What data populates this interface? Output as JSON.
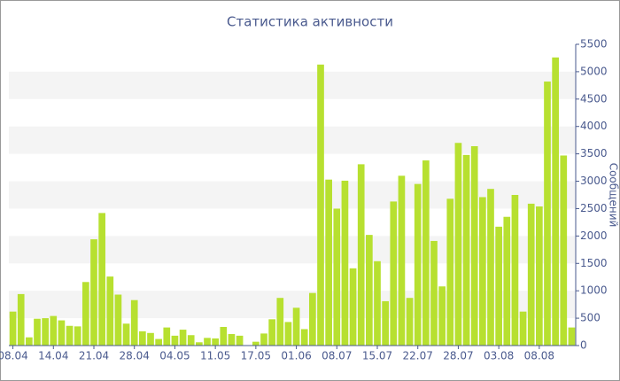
{
  "chart_data": {
    "type": "bar",
    "title": "Статистика активности",
    "y_label": "Сообщений",
    "categories": [
      "08.04",
      null,
      null,
      null,
      null,
      "14.04",
      null,
      null,
      null,
      null,
      "21.04",
      null,
      null,
      null,
      null,
      "28.04",
      null,
      null,
      null,
      null,
      "04.05",
      null,
      null,
      null,
      null,
      "11.05",
      null,
      null,
      null,
      null,
      "17.05",
      null,
      null,
      null,
      null,
      "01.06",
      null,
      null,
      null,
      null,
      "08.07",
      null,
      null,
      null,
      null,
      "15.07",
      null,
      null,
      null,
      null,
      "22.07",
      null,
      null,
      null,
      null,
      "28.07",
      null,
      null,
      null,
      null,
      "03.08",
      null,
      null,
      null,
      null,
      "08.08",
      null,
      null,
      null,
      null
    ],
    "values": [
      620,
      940,
      150,
      490,
      500,
      540,
      460,
      360,
      350,
      1160,
      1940,
      2420,
      1260,
      930,
      400,
      830,
      260,
      230,
      120,
      330,
      180,
      290,
      190,
      60,
      140,
      130,
      340,
      210,
      180,
      0,
      70,
      220,
      480,
      870,
      430,
      690,
      300,
      960,
      5130,
      3030,
      2500,
      3010,
      1410,
      3310,
      2020,
      1540,
      810,
      2630,
      3100,
      870,
      2950,
      3380,
      1910,
      1080,
      2680,
      3700,
      3480,
      3640,
      2710,
      2860,
      2170,
      2350,
      2750,
      620,
      2590,
      2540,
      4820,
      5260,
      3470,
      330
    ],
    "color": "#b7e030",
    "ylim": [
      0,
      5500
    ],
    "yticks": [
      0,
      500,
      1000,
      1500,
      2000,
      2500,
      3000,
      3500,
      4000,
      4500,
      5000,
      5500
    ],
    "grid": true
  }
}
